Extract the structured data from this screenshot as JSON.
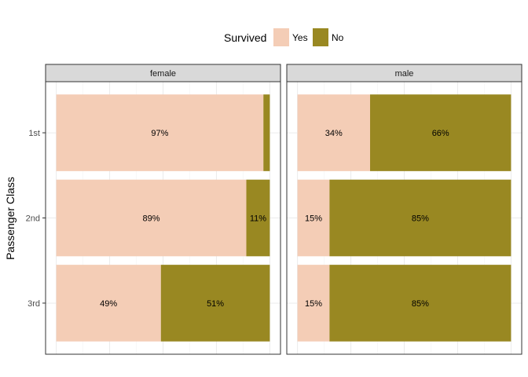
{
  "chart_data": {
    "type": "bar",
    "orientation": "horizontal",
    "stacked": true,
    "percent_stacked": true,
    "legend": {
      "title": "Survived",
      "position": "top",
      "entries": [
        {
          "label": "Yes",
          "color": "#f4cdb6"
        },
        {
          "label": "No",
          "color": "#998822"
        }
      ]
    },
    "ylabel": "Passenger Class",
    "xlabel": "",
    "categories": [
      "1st",
      "2nd",
      "3rd"
    ],
    "xlim": [
      0,
      1
    ],
    "grid": true,
    "facets": [
      {
        "label": "female",
        "series": [
          {
            "name": "Yes",
            "values": [
              0.97,
              0.89,
              0.49
            ],
            "labels": [
              "97%",
              "89%",
              "49%"
            ]
          },
          {
            "name": "No",
            "values": [
              0.03,
              0.11,
              0.51
            ],
            "labels": [
              "",
              "11%",
              "51%"
            ]
          }
        ]
      },
      {
        "label": "male",
        "series": [
          {
            "name": "Yes",
            "values": [
              0.34,
              0.15,
              0.15
            ],
            "labels": [
              "34%",
              "15%",
              "15%"
            ]
          },
          {
            "name": "No",
            "values": [
              0.66,
              0.85,
              0.85
            ],
            "labels": [
              "66%",
              "85%",
              "85%"
            ]
          }
        ]
      }
    ]
  }
}
